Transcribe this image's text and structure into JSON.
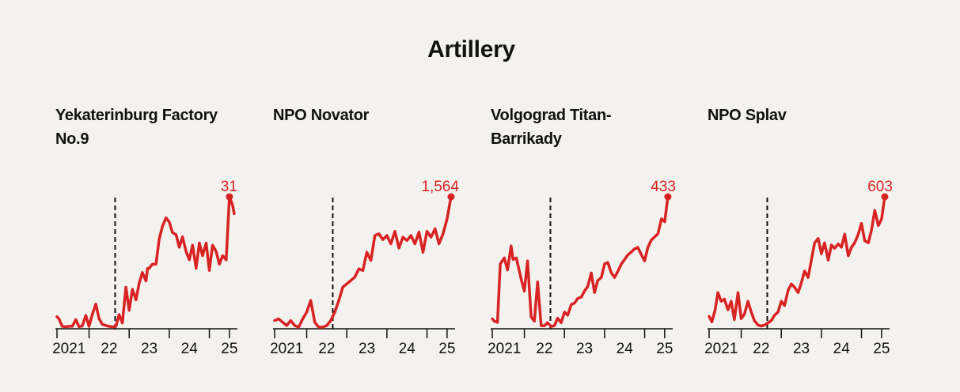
{
  "title": "Artillery",
  "colors": {
    "line": "#d82323",
    "axis": "#111111",
    "background": "#f3f2ee"
  },
  "chart_data": [
    {
      "type": "line",
      "title": "Yekaterinburg Factory No.9",
      "x_tick_labels": [
        "2021",
        "22",
        "23",
        "24",
        "25"
      ],
      "x_ticks": [
        2021.0,
        2022.0,
        2023.0,
        2024.0,
        2025.0
      ],
      "xlim": [
        2020.7,
        2025.2
      ],
      "ylim": [
        0,
        31
      ],
      "event_line_x": 2022.15,
      "end_label": "31",
      "series": [
        {
          "x": [
            2020.7,
            2020.75,
            2020.83,
            2020.92,
            2021.0,
            2021.08,
            2021.17,
            2021.25,
            2021.33,
            2021.42,
            2021.5,
            2021.58,
            2021.67,
            2021.75,
            2021.83,
            2021.92,
            2022.0,
            2022.08,
            2022.12,
            2022.17,
            2022.25,
            2022.33,
            2022.42,
            2022.5,
            2022.58,
            2022.67,
            2022.75,
            2022.83,
            2022.92,
            2022.96,
            2023.0,
            2023.08,
            2023.17,
            2023.25,
            2023.33,
            2023.42,
            2023.5,
            2023.58,
            2023.67,
            2023.75,
            2023.83,
            2023.92,
            2024.0,
            2024.08,
            2024.17,
            2024.25,
            2024.33,
            2024.42,
            2024.5,
            2024.58,
            2024.67,
            2024.75,
            2024.83,
            2024.92,
            2025.0,
            2025.08,
            2025.12
          ],
          "y": [
            2.5,
            2.0,
            0.2,
            0.1,
            0.2,
            0.2,
            1.8,
            0.1,
            0.3,
            2.8,
            0.2,
            3.0,
            5.5,
            2.0,
            0.7,
            0.4,
            0.2,
            0.1,
            0.1,
            0.2,
            3.0,
            1.0,
            9.5,
            4.0,
            9.0,
            6.5,
            10.5,
            13.0,
            11.0,
            14.0,
            14.0,
            15.0,
            15.0,
            21.0,
            24.0,
            26.0,
            25.0,
            22.5,
            22.0,
            19.0,
            21.5,
            18.0,
            16.0,
            19.5,
            14.0,
            20.0,
            17.0,
            20.0,
            13.5,
            19.5,
            18.0,
            15.0,
            17.0,
            16.0,
            31.0,
            29.0,
            27.0
          ]
        }
      ]
    },
    {
      "type": "line",
      "title": "NPO Novator",
      "x_tick_labels": [
        "2021",
        "22",
        "23",
        "24",
        "25"
      ],
      "x_ticks": [
        2021.0,
        2022.0,
        2023.0,
        2024.0,
        2025.0
      ],
      "xlim": [
        2020.7,
        2025.2
      ],
      "ylim": [
        0,
        1564
      ],
      "event_line_x": 2022.15,
      "end_label": "1,564",
      "series": [
        {
          "x": [
            2020.7,
            2020.8,
            2020.9,
            2021.0,
            2021.1,
            2021.2,
            2021.3,
            2021.4,
            2021.5,
            2021.6,
            2021.7,
            2021.8,
            2021.9,
            2022.0,
            2022.1,
            2022.2,
            2022.3,
            2022.4,
            2022.5,
            2022.6,
            2022.7,
            2022.8,
            2022.9,
            2023.0,
            2023.1,
            2023.2,
            2023.3,
            2023.4,
            2023.5,
            2023.6,
            2023.7,
            2023.8,
            2023.9,
            2024.0,
            2024.1,
            2024.2,
            2024.3,
            2024.4,
            2024.5,
            2024.6,
            2024.7,
            2024.8,
            2024.9,
            2025.0,
            2025.1
          ],
          "y": [
            80,
            100,
            60,
            20,
            80,
            20,
            0,
            100,
            180,
            320,
            60,
            0,
            0,
            20,
            80,
            180,
            320,
            480,
            520,
            560,
            600,
            700,
            680,
            900,
            800,
            1100,
            1120,
            1050,
            1100,
            1000,
            1150,
            950,
            1080,
            1040,
            1100,
            1000,
            1140,
            900,
            1150,
            1080,
            1180,
            1000,
            1120,
            1300,
            1564
          ]
        }
      ]
    },
    {
      "type": "line",
      "title": "Volgograd Titan-Barrikady",
      "x_tick_labels": [
        "2021",
        "22",
        "23",
        "24",
        "25"
      ],
      "x_ticks": [
        2021.0,
        2022.0,
        2023.0,
        2024.0,
        2025.0
      ],
      "xlim": [
        2020.7,
        2025.2
      ],
      "ylim": [
        0,
        433
      ],
      "event_line_x": 2022.15,
      "end_label": "433",
      "series": [
        {
          "x": [
            2020.7,
            2020.75,
            2020.83,
            2020.9,
            2021.0,
            2021.08,
            2021.17,
            2021.22,
            2021.3,
            2021.42,
            2021.5,
            2021.58,
            2021.67,
            2021.75,
            2021.83,
            2021.92,
            2022.0,
            2022.08,
            2022.17,
            2022.25,
            2022.33,
            2022.42,
            2022.5,
            2022.58,
            2022.67,
            2022.75,
            2022.83,
            2022.92,
            2023.0,
            2023.08,
            2023.17,
            2023.25,
            2023.33,
            2023.42,
            2023.5,
            2023.58,
            2023.67,
            2023.75,
            2023.83,
            2023.92,
            2024.0,
            2024.08,
            2024.17,
            2024.25,
            2024.33,
            2024.42,
            2024.5,
            2024.58,
            2024.67,
            2024.75,
            2024.83,
            2024.92,
            2025.0,
            2025.08
          ],
          "y": [
            28,
            20,
            16,
            210,
            230,
            190,
            270,
            225,
            230,
            160,
            120,
            220,
            35,
            20,
            150,
            5,
            5,
            15,
            2,
            5,
            30,
            15,
            50,
            40,
            75,
            80,
            95,
            100,
            120,
            135,
            180,
            115,
            155,
            165,
            210,
            215,
            180,
            165,
            185,
            210,
            225,
            240,
            250,
            260,
            265,
            240,
            220,
            265,
            290,
            300,
            310,
            360,
            350,
            433
          ]
        }
      ]
    },
    {
      "type": "line",
      "title": "NPO Splav",
      "x_tick_labels": [
        "2021",
        "22",
        "23",
        "24",
        "25"
      ],
      "x_ticks": [
        2021.0,
        2022.0,
        2023.0,
        2024.0,
        2025.0
      ],
      "xlim": [
        2020.7,
        2025.2
      ],
      "ylim": [
        0,
        603
      ],
      "event_line_x": 2022.15,
      "end_label": "603",
      "series": [
        {
          "x": [
            2020.7,
            2020.77,
            2020.85,
            2020.92,
            2021.0,
            2021.08,
            2021.17,
            2021.25,
            2021.33,
            2021.42,
            2021.5,
            2021.58,
            2021.67,
            2021.75,
            2021.83,
            2021.92,
            2022.0,
            2022.08,
            2022.17,
            2022.25,
            2022.33,
            2022.42,
            2022.5,
            2022.58,
            2022.67,
            2022.75,
            2022.83,
            2022.92,
            2023.0,
            2023.08,
            2023.17,
            2023.25,
            2023.33,
            2023.42,
            2023.5,
            2023.58,
            2023.67,
            2023.75,
            2023.83,
            2023.92,
            2024.0,
            2024.08,
            2024.17,
            2024.25,
            2024.33,
            2024.42,
            2024.5,
            2024.58,
            2024.67,
            2024.75,
            2024.83,
            2024.92,
            2025.0,
            2025.08
          ],
          "y": [
            50,
            25,
            80,
            160,
            120,
            130,
            80,
            120,
            35,
            160,
            40,
            60,
            120,
            70,
            30,
            10,
            5,
            10,
            20,
            30,
            55,
            70,
            120,
            100,
            170,
            200,
            185,
            160,
            205,
            260,
            230,
            310,
            390,
            410,
            340,
            390,
            310,
            380,
            365,
            385,
            370,
            430,
            330,
            370,
            390,
            430,
            480,
            400,
            390,
            450,
            540,
            470,
            500,
            603
          ]
        }
      ]
    }
  ]
}
